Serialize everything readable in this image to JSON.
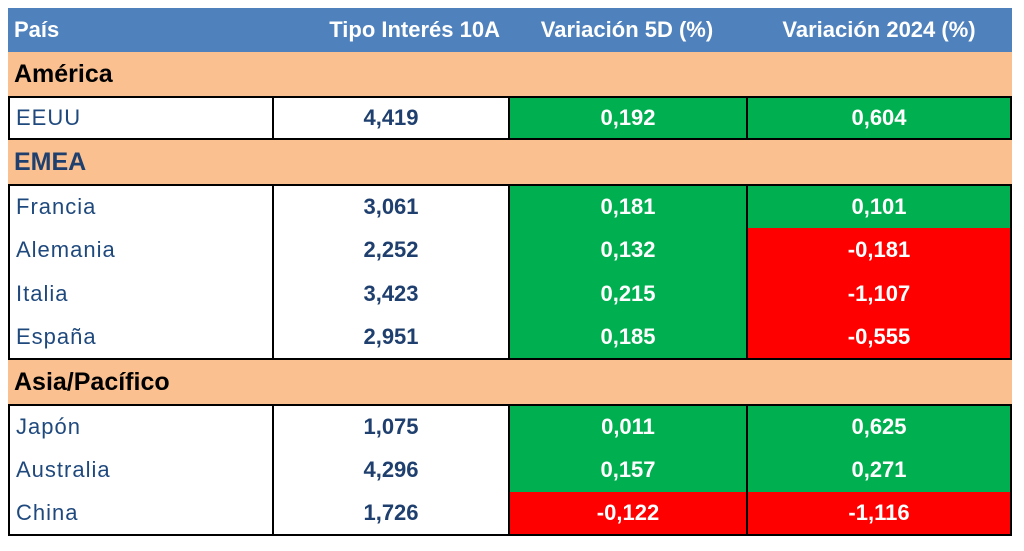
{
  "headers": {
    "country": "País",
    "rate": "Tipo Interés 10A",
    "var5d": "Variación 5D (%)",
    "var2024": "Variación 2024 (%)"
  },
  "colors": {
    "header": "#4f81bd",
    "group": "#fac090",
    "positive": "#00b050",
    "negative": "#ff0000"
  },
  "groups": [
    {
      "name": "América",
      "rows": [
        {
          "country": "EEUU",
          "rate": "4,419",
          "var5d": "0,192",
          "var2024": "0,604"
        }
      ]
    },
    {
      "name": "EMEA",
      "rows": [
        {
          "country": "Francia",
          "rate": "3,061",
          "var5d": "0,181",
          "var2024": "0,101"
        },
        {
          "country": "Alemania",
          "rate": "2,252",
          "var5d": "0,132",
          "var2024": "-0,181"
        },
        {
          "country": "Italia",
          "rate": "3,423",
          "var5d": "0,215",
          "var2024": "-1,107"
        },
        {
          "country": "España",
          "rate": "2,951",
          "var5d": "0,185",
          "var2024": "-0,555"
        }
      ]
    },
    {
      "name": "Asia/Pacífico",
      "rows": [
        {
          "country": "Japón",
          "rate": "1,075",
          "var5d": "0,011",
          "var2024": "0,625"
        },
        {
          "country": "Australia",
          "rate": "4,296",
          "var5d": "0,157",
          "var2024": "0,271"
        },
        {
          "country": "China",
          "rate": "1,726",
          "var5d": "-0,122",
          "var2024": "-1,116"
        }
      ]
    }
  ]
}
